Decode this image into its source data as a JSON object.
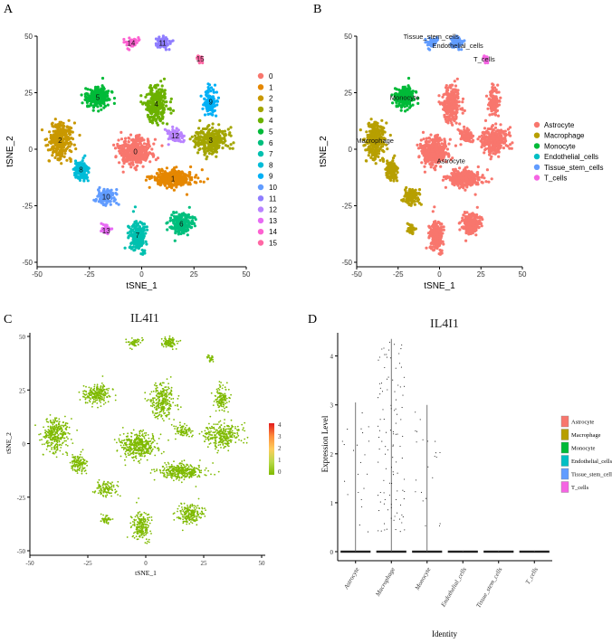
{
  "panels": {
    "a": {
      "letter": "A"
    },
    "b": {
      "letter": "B"
    },
    "c": {
      "letter": "C"
    },
    "d": {
      "letter": "D"
    }
  },
  "chart_data": [
    {
      "panel": "A",
      "type": "scatter",
      "xlabel": "tSNE_1",
      "ylabel": "tSNE_2",
      "xlim": [
        -50,
        50
      ],
      "ylim": [
        -50,
        50
      ],
      "xticks": [
        -50,
        -25,
        0,
        25,
        50
      ],
      "yticks": [
        -50,
        -25,
        0,
        25,
        50
      ],
      "grid": false,
      "legend_position": "right",
      "legend": [
        "0",
        "1",
        "2",
        "3",
        "4",
        "5",
        "6",
        "7",
        "8",
        "9",
        "10",
        "11",
        "12",
        "13",
        "14",
        "15"
      ],
      "colors": [
        "#F8766D",
        "#E58700",
        "#C99800",
        "#A3A500",
        "#6BB100",
        "#00BA38",
        "#00BF7D",
        "#00C0AF",
        "#00BCD8",
        "#00B0F6",
        "#619CFF",
        "#8F7DFF",
        "#B983FF",
        "#E76BF3",
        "#FD61D1",
        "#FF67A4"
      ],
      "clusters": [
        {
          "label": "0",
          "cx": -3,
          "cy": -1,
          "sx": 7,
          "sy": 5,
          "n": 420
        },
        {
          "label": "1",
          "cx": 15,
          "cy": -13,
          "sx": 9,
          "sy": 3.5,
          "n": 330
        },
        {
          "label": "2",
          "cx": -39,
          "cy": 4,
          "sx": 5,
          "sy": 7,
          "n": 300
        },
        {
          "label": "3",
          "cx": 33,
          "cy": 4,
          "sx": 7,
          "sy": 5,
          "n": 280
        },
        {
          "label": "4",
          "cx": 7,
          "cy": 20,
          "sx": 5,
          "sy": 8,
          "n": 270
        },
        {
          "label": "5",
          "cx": -21,
          "cy": 23,
          "sx": 5,
          "sy": 4,
          "n": 220
        },
        {
          "label": "6",
          "cx": 19,
          "cy": -33,
          "sx": 5,
          "sy": 4,
          "n": 200
        },
        {
          "label": "7",
          "cx": -2,
          "cy": -38,
          "sx": 3.5,
          "sy": 6,
          "n": 200
        },
        {
          "label": "8",
          "cx": -29,
          "cy": -9,
          "sx": 3,
          "sy": 4,
          "n": 120
        },
        {
          "label": "9",
          "cx": 33,
          "cy": 21,
          "sx": 3,
          "sy": 5,
          "n": 130
        },
        {
          "label": "10",
          "cx": -17,
          "cy": -21,
          "sx": 4,
          "sy": 3,
          "n": 110
        },
        {
          "label": "11",
          "cx": 10,
          "cy": 47,
          "sx": 3,
          "sy": 2.5,
          "n": 90
        },
        {
          "label": "12",
          "cx": 16,
          "cy": 6,
          "sx": 3,
          "sy": 2.5,
          "n": 80
        },
        {
          "label": "13",
          "cx": -17,
          "cy": -36,
          "sx": 2,
          "sy": 2,
          "n": 40
        },
        {
          "label": "14",
          "cx": -5,
          "cy": 47,
          "sx": 2.5,
          "sy": 2,
          "n": 50
        },
        {
          "label": "15",
          "cx": 28,
          "cy": 40,
          "sx": 1.5,
          "sy": 1.5,
          "n": 25
        }
      ]
    },
    {
      "panel": "B",
      "type": "scatter",
      "xlabel": "tSNE_1",
      "ylabel": "tSNE_2",
      "xlim": [
        -50,
        50
      ],
      "ylim": [
        -50,
        50
      ],
      "xticks": [
        -50,
        -25,
        0,
        25,
        50
      ],
      "yticks": [
        -50,
        -25,
        0,
        25,
        50
      ],
      "grid": false,
      "legend_position": "right",
      "legend": [
        "Astrocyte",
        "Macrophage",
        "Monocyte",
        "Endothelial_cells",
        "Tissue_stem_cells",
        "T_cells"
      ],
      "colors": [
        "#F8766D",
        "#B79F00",
        "#00BA38",
        "#00BFC4",
        "#619CFF",
        "#F564E3"
      ],
      "cluster_labels": [
        {
          "label": "Astrocyte",
          "x": 7,
          "y": -5
        },
        {
          "label": "Macrophage",
          "x": -39,
          "y": 4
        },
        {
          "label": "Monocyte",
          "x": -21,
          "y": 23
        },
        {
          "label": "Endothelial_cells",
          "x": 11,
          "y": 46
        },
        {
          "label": "Tissue_stem_cells",
          "x": -5,
          "y": 50
        },
        {
          "label": "T_cells",
          "x": 27,
          "y": 40
        }
      ]
    },
    {
      "panel": "C",
      "type": "scatter",
      "title": "IL4I1",
      "xlabel": "tSNE_1",
      "ylabel": "tSNE_2",
      "xlim": [
        -50,
        50
      ],
      "ylim": [
        -50,
        50
      ],
      "xticks": [
        -50,
        -25,
        0,
        25,
        50
      ],
      "yticks": [
        -50,
        -25,
        0,
        25,
        50
      ],
      "grid": false,
      "legend_position": "right",
      "colorbar_ticks": [
        "4",
        "3",
        "2",
        "1",
        "0"
      ],
      "colorbar_colors": [
        "#E31A1C",
        "#FD8D3C",
        "#FECC5C",
        "#B8D94A",
        "#7FBA00"
      ],
      "point_color": "#7FBA00"
    },
    {
      "panel": "D",
      "type": "violin",
      "title": "IL4I1",
      "xlabel": "Identity",
      "ylabel": "Expression Level",
      "ylim": [
        0,
        4.4
      ],
      "yticks": [
        0,
        1,
        2,
        3,
        4
      ],
      "grid": false,
      "legend_position": "right",
      "categories": [
        "Astrocyte",
        "Macrophage",
        "Monocyte",
        "Endothelial_cells",
        "Tissue_stem_cells",
        "T_cells"
      ],
      "colors": [
        "#F8766D",
        "#B79F00",
        "#00BA38",
        "#00BFC4",
        "#619CFF",
        "#F564E3"
      ],
      "max_values": [
        3.05,
        4.35,
        3.0,
        0.02,
        0.02,
        0.02
      ],
      "nonzero_counts": [
        22,
        110,
        22,
        0,
        0,
        0
      ]
    }
  ]
}
